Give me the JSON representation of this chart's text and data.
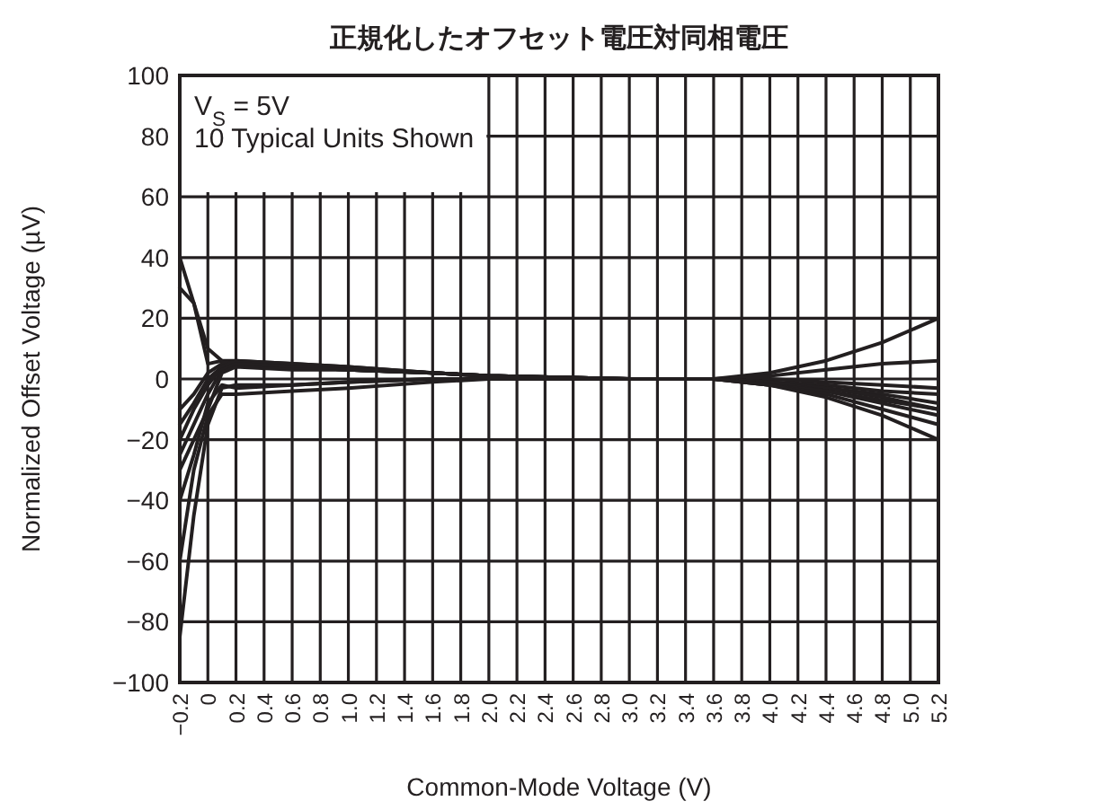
{
  "chart_data": {
    "type": "line",
    "title": "正規化したオフセット電圧対同相電圧",
    "xlabel": "Common-Mode Voltage (V)",
    "ylabel": "Normalized Offset Voltage (µV)",
    "annotations": [
      "V$_{S}$ = 5V",
      "10 Typical Units Shown"
    ],
    "xlim": [
      -0.2,
      5.2
    ],
    "ylim": [
      -100,
      100
    ],
    "grid": true,
    "marker": "none",
    "line_style": "solid",
    "xticks": [
      {
        "value": -0.2,
        "label": "−0.2"
      },
      0,
      0.2,
      0.4,
      0.6,
      0.8,
      {
        "value": 1,
        "label": "1.0"
      },
      1.2,
      1.4,
      1.6,
      1.8,
      {
        "value": 2,
        "label": "2.0"
      },
      2.2,
      2.4,
      2.6,
      2.8,
      {
        "value": 3,
        "label": "3.0"
      },
      3.2,
      3.4,
      3.6,
      3.8,
      {
        "value": 4,
        "label": "4.0"
      },
      4.2,
      4.4,
      4.6,
      4.8,
      {
        "value": 5,
        "label": "5.0"
      },
      5.2
    ],
    "yticks": [
      {
        "value": -100,
        "label": "−100"
      },
      {
        "value": -80,
        "label": "−80"
      },
      {
        "value": -60,
        "label": "−60"
      },
      {
        "value": -40,
        "label": "−40"
      },
      {
        "value": -20,
        "label": "−20"
      },
      0,
      20,
      40,
      60,
      80,
      100
    ],
    "x": [
      -0.2,
      -0.1,
      0,
      0.1,
      0.2,
      0.6,
      1.0,
      1.6,
      2.0,
      3.0,
      3.6,
      4.0,
      4.4,
      4.8,
      5.2
    ],
    "series": [
      {
        "color": "#231f20",
        "values": [
          40,
          25,
          5,
          6,
          6,
          5,
          4,
          2,
          1,
          0,
          0,
          2,
          6,
          12,
          20
        ]
      },
      {
        "color": "#231f20",
        "values": [
          30,
          25,
          10,
          6,
          5,
          4,
          3,
          2,
          1,
          0,
          0,
          1,
          3,
          5,
          6
        ]
      },
      {
        "color": "#231f20",
        "values": [
          -10,
          -5,
          2,
          5,
          5,
          4,
          3,
          2,
          1,
          0,
          0,
          0,
          -1,
          -2,
          -3
        ]
      },
      {
        "color": "#231f20",
        "values": [
          -15,
          -8,
          0,
          4,
          5,
          4,
          3,
          2,
          1,
          0,
          0,
          -1,
          -2,
          -4,
          -5
        ]
      },
      {
        "color": "#231f20",
        "values": [
          -20,
          -10,
          -2,
          4,
          6,
          5,
          4,
          2,
          1,
          0,
          0,
          -1,
          -3,
          -5,
          -8
        ]
      },
      {
        "color": "#231f20",
        "values": [
          -25,
          -15,
          -5,
          3,
          5,
          4,
          3,
          2,
          1,
          0,
          0,
          -1,
          -3,
          -6,
          -10
        ]
      },
      {
        "color": "#231f20",
        "values": [
          -30,
          -20,
          -10,
          2,
          4,
          3,
          3,
          2,
          1,
          0,
          0,
          -1,
          -4,
          -7,
          -10
        ]
      },
      {
        "color": "#231f20",
        "values": [
          -40,
          -25,
          -8,
          -2,
          -3,
          -2,
          -1,
          0,
          0,
          0,
          0,
          -2,
          -4,
          -8,
          -12
        ]
      },
      {
        "color": "#231f20",
        "values": [
          -60,
          -30,
          -12,
          -5,
          -5,
          -4,
          -3,
          -1,
          0,
          0,
          0,
          -2,
          -5,
          -10,
          -15
        ]
      },
      {
        "color": "#231f20",
        "values": [
          -85,
          -45,
          -15,
          -3,
          -2,
          -2,
          -1,
          0,
          0,
          0,
          0,
          -2,
          -6,
          -12,
          -20
        ]
      }
    ]
  }
}
